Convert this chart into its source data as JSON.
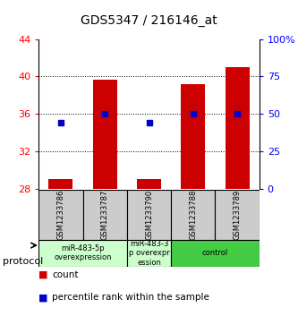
{
  "title": "GDS5347 / 216146_at",
  "samples": [
    "GSM1233786",
    "GSM1233787",
    "GSM1233790",
    "GSM1233788",
    "GSM1233789"
  ],
  "count_values": [
    29.0,
    39.6,
    29.0,
    39.2,
    41.0
  ],
  "count_base": 28.0,
  "percentile_right": [
    44,
    50,
    44,
    50,
    50
  ],
  "ylim_left": [
    28,
    44
  ],
  "ylim_right": [
    0,
    100
  ],
  "yticks_left": [
    28,
    32,
    36,
    40,
    44
  ],
  "yticks_right": [
    0,
    25,
    50,
    75,
    100
  ],
  "ytick_labels_right": [
    "0",
    "25",
    "50",
    "75",
    "100%"
  ],
  "bar_color": "#CC0000",
  "dot_color": "#0000CC",
  "sample_box_color": "#cccccc",
  "bar_width": 0.55,
  "groups_info": [
    [
      0,
      1,
      "miR-483-5p\noverexpression",
      "#ccffcc"
    ],
    [
      2,
      2,
      "miR-483-3\np overexpr\nession",
      "#ccffcc"
    ],
    [
      3,
      4,
      "control",
      "#44cc44"
    ]
  ],
  "protocol_label": "protocol",
  "legend_count_label": "count",
  "legend_pct_label": "percentile rank within the sample"
}
